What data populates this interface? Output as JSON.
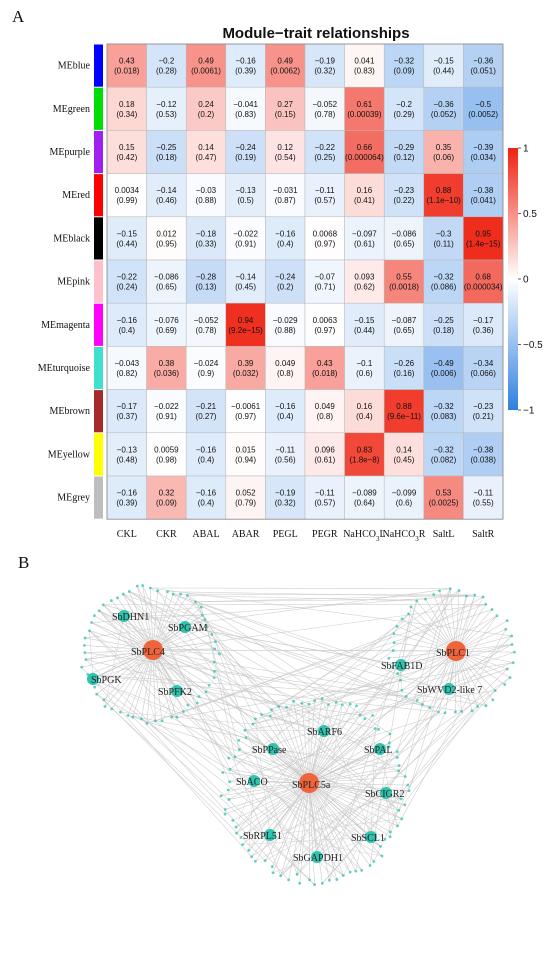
{
  "panel_a_label": "A",
  "panel_b_label": "B",
  "chart_data": {
    "type": "heatmap",
    "title": "Module−trait relationships",
    "rows": [
      "MEblue",
      "MEgreen",
      "MEpurple",
      "MEred",
      "MEblack",
      "MEpink",
      "MEmagenta",
      "MEturquoise",
      "MEbrown",
      "MEyellow",
      "MEgrey"
    ],
    "row_colors": [
      "#0000ff",
      "#00dd00",
      "#a020f0",
      "#ff0000",
      "#000000",
      "#ffc0cb",
      "#ff00ff",
      "#40e0d0",
      "#a52a2a",
      "#ffff00",
      "#bebebe"
    ],
    "columns": [
      "CKL",
      "CKR",
      "ABAL",
      "ABAR",
      "PEGL",
      "PEGR",
      "NaHCO3L",
      "NaHCO3R",
      "SaltL",
      "SaltR"
    ],
    "correlations": [
      [
        0.43,
        -0.2,
        0.49,
        -0.16,
        0.49,
        -0.19,
        0.041,
        -0.32,
        -0.15,
        -0.36
      ],
      [
        0.18,
        -0.12,
        0.24,
        -0.041,
        0.27,
        -0.052,
        0.61,
        -0.2,
        -0.36,
        -0.5
      ],
      [
        0.15,
        -0.25,
        0.14,
        -0.24,
        0.12,
        -0.22,
        0.66,
        -0.29,
        0.35,
        -0.39
      ],
      [
        0.0034,
        -0.14,
        -0.03,
        -0.13,
        -0.031,
        -0.11,
        0.16,
        -0.23,
        0.88,
        -0.38
      ],
      [
        -0.15,
        0.012,
        -0.18,
        -0.022,
        -0.16,
        0.0068,
        -0.097,
        -0.086,
        -0.3,
        0.95
      ],
      [
        -0.22,
        -0.086,
        -0.28,
        -0.14,
        -0.24,
        -0.07,
        0.093,
        0.55,
        -0.32,
        0.68
      ],
      [
        -0.16,
        -0.076,
        -0.052,
        0.94,
        -0.029,
        0.0063,
        -0.15,
        -0.087,
        -0.25,
        -0.17
      ],
      [
        -0.043,
        0.38,
        -0.024,
        0.39,
        0.049,
        0.43,
        -0.1,
        -0.26,
        -0.49,
        -0.34
      ],
      [
        -0.17,
        -0.022,
        -0.21,
        -0.0061,
        -0.16,
        0.049,
        0.16,
        0.88,
        -0.32,
        -0.23
      ],
      [
        -0.13,
        0.0059,
        -0.16,
        0.015,
        -0.11,
        0.096,
        0.83,
        0.14,
        -0.32,
        -0.38
      ],
      [
        -0.16,
        0.32,
        -0.16,
        0.052,
        -0.19,
        -0.11,
        -0.089,
        -0.099,
        0.53,
        -0.11
      ]
    ],
    "pvalues": [
      [
        "(0.018)",
        "(0.28)",
        "(0.0061)",
        "(0.39)",
        "(0.0062)",
        "(0.32)",
        "(0.83)",
        "(0.09)",
        "(0.44)",
        "(0.051)"
      ],
      [
        "(0.34)",
        "(0.53)",
        "(0.2)",
        "(0.83)",
        "(0.15)",
        "(0.78)",
        "(0.00039)",
        "(0.29)",
        "(0.052)",
        "(0.0052)"
      ],
      [
        "(0.42)",
        "(0.18)",
        "(0.47)",
        "(0.19)",
        "(0.54)",
        "(0.25)",
        "(0.000064)",
        "(0.12)",
        "(0.06)",
        "(0.034)"
      ],
      [
        "(0.99)",
        "(0.46)",
        "(0.88)",
        "(0.5)",
        "(0.87)",
        "(0.57)",
        "(0.41)",
        "(0.22)",
        "(1.1e−10)",
        "(0.041)"
      ],
      [
        "(0.44)",
        "(0.95)",
        "(0.33)",
        "(0.91)",
        "(0.4)",
        "(0.97)",
        "(0.61)",
        "(0.65)",
        "(0.11)",
        "(1.4e−15)"
      ],
      [
        "(0.24)",
        "(0.65)",
        "(0.13)",
        "(0.45)",
        "(0.2)",
        "(0.71)",
        "(0.62)",
        "(0.0018)",
        "(0.086)",
        "(0.000034)"
      ],
      [
        "(0.4)",
        "(0.69)",
        "(0.78)",
        "(9.2e−15)",
        "(0.88)",
        "(0.97)",
        "(0.44)",
        "(0.65)",
        "(0.18)",
        "(0.36)"
      ],
      [
        "(0.82)",
        "(0.036)",
        "(0.9)",
        "(0.032)",
        "(0.8)",
        "(0.018)",
        "(0.6)",
        "(0.16)",
        "(0.006)",
        "(0.066)"
      ],
      [
        "(0.37)",
        "(0.91)",
        "(0.27)",
        "(0.97)",
        "(0.4)",
        "(0.8)",
        "(0.4)",
        "(9.6e−11)",
        "(0.083)",
        "(0.21)"
      ],
      [
        "(0.48)",
        "(0.98)",
        "(0.4)",
        "(0.94)",
        "(0.56)",
        "(0.61)",
        "(1.8e−8)",
        "(0.45)",
        "(0.082)",
        "(0.038)"
      ],
      [
        "(0.39)",
        "(0.09)",
        "(0.4)",
        "(0.79)",
        "(0.32)",
        "(0.57)",
        "(0.64)",
        "(0.6)",
        "(0.0025)",
        "(0.55)"
      ]
    ],
    "color_scale": {
      "min": -1,
      "max": 1,
      "low_color": "#2f7fe0",
      "mid_color": "#ffffff",
      "high_color": "#ee2211",
      "ticks": [
        "1",
        "0.5",
        "0",
        "−0.5",
        "−1"
      ]
    }
  },
  "network": {
    "hubs": [
      {
        "id": "plc4",
        "label": "SbPLC4",
        "type": "hub"
      },
      {
        "id": "plc1",
        "label": "SbPLC1",
        "type": "hub"
      },
      {
        "id": "plc5a",
        "label": "SbPLC5a",
        "type": "hub"
      }
    ],
    "genes": [
      {
        "id": "dhn1",
        "label": "SbDHN1",
        "type": "gene"
      },
      {
        "id": "pgam",
        "label": "SbPGAM",
        "type": "gene"
      },
      {
        "id": "pgk",
        "label": "SbPGK",
        "type": "gene"
      },
      {
        "id": "pfk2",
        "label": "SbPFK2",
        "type": "gene"
      },
      {
        "id": "fab1d",
        "label": "SbFAB1D",
        "type": "gene"
      },
      {
        "id": "wvd2",
        "label": "SbWVD2-like 7",
        "type": "gene"
      },
      {
        "id": "arf6",
        "label": "SbARF6",
        "type": "gene"
      },
      {
        "id": "ppase",
        "label": "SbPPase",
        "type": "gene"
      },
      {
        "id": "pal",
        "label": "SbPAL",
        "type": "gene"
      },
      {
        "id": "aco",
        "label": "SbACO",
        "type": "gene"
      },
      {
        "id": "cigr2",
        "label": "SbCIGR2",
        "type": "gene"
      },
      {
        "id": "rpl51",
        "label": "SbRPL51",
        "type": "gene"
      },
      {
        "id": "scl1",
        "label": "SbSCL1",
        "type": "gene"
      },
      {
        "id": "gapdh1",
        "label": "SbGAPDH1",
        "type": "gene"
      }
    ],
    "hub_color": "#f0643c",
    "gene_color": "#2ec4b0",
    "edge_color": "#c8c8c8"
  }
}
